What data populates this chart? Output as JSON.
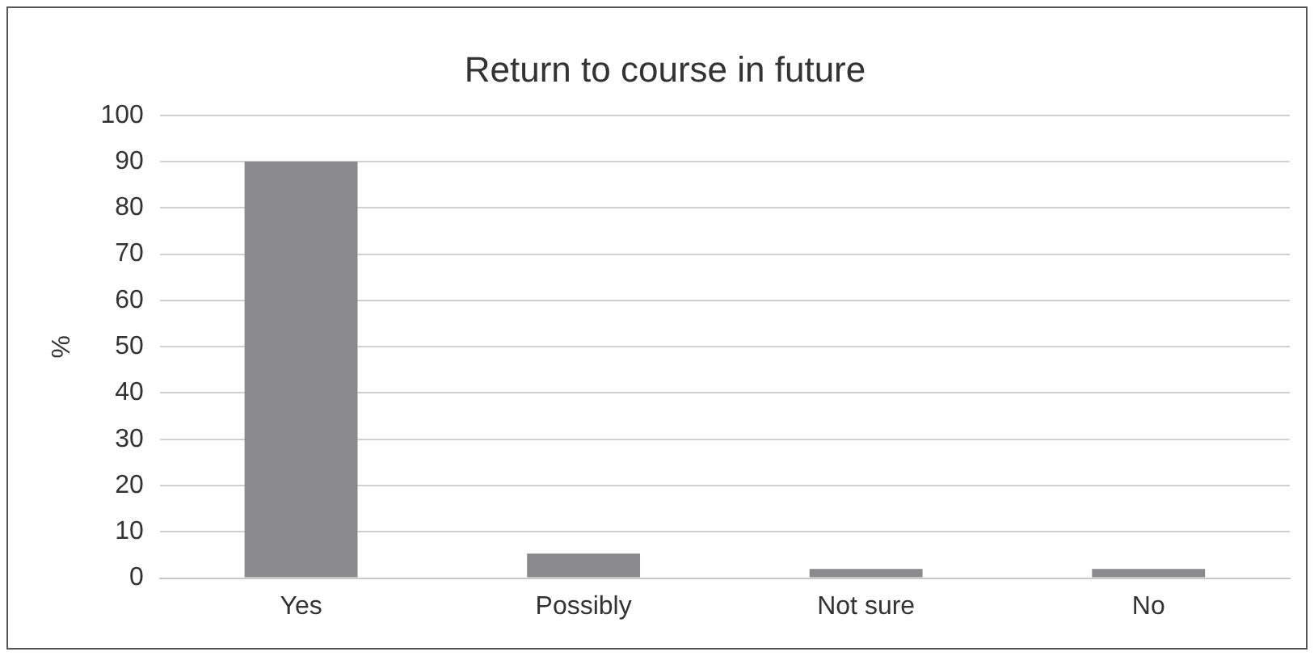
{
  "chart_data": {
    "type": "bar",
    "title": "Return to course in future",
    "ylabel": "%",
    "categories": [
      "Yes",
      "Possibly",
      "Not sure",
      "No"
    ],
    "values": [
      90,
      5.3,
      2,
      2
    ],
    "color": "#8a8a8c",
    "ylim": [
      0,
      100
    ],
    "yticks": [
      0,
      10,
      20,
      30,
      40,
      50,
      60,
      70,
      80,
      90,
      100
    ],
    "grid": "y",
    "legend": false
  }
}
